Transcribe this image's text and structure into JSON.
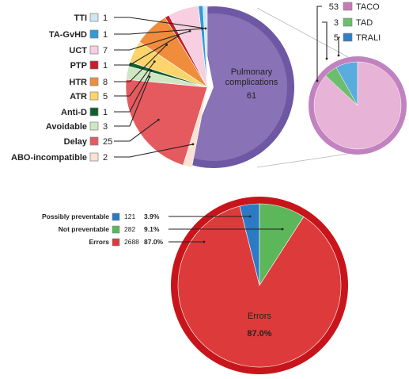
{
  "chart_data": [
    {
      "type": "pie",
      "slices": [
        {
          "label": "TTI",
          "value": 1,
          "color": "#cfe6f4"
        },
        {
          "label": "TA-GvHD",
          "value": 1,
          "color": "#2f9bd6"
        },
        {
          "label": "UCT",
          "value": 7,
          "color": "#f7cfe0"
        },
        {
          "label": "PTP",
          "value": 1,
          "color": "#c51f2b"
        },
        {
          "label": "HTR",
          "value": 8,
          "color": "#f08d3d"
        },
        {
          "label": "ATR",
          "value": 5,
          "color": "#fbd56c"
        },
        {
          "label": "Anti-D",
          "value": 1,
          "color": "#135e2d"
        },
        {
          "label": "Avoidable",
          "value": 3,
          "color": "#cfe6c3"
        },
        {
          "label": "Delay",
          "value": 25,
          "color": "#e55a5e"
        },
        {
          "label": "ABO-incompatible",
          "value": 2,
          "color": "#fbe1d2"
        }
      ],
      "exploded_slice": {
        "label_line1": "Pulmonary",
        "label_line2": "complications",
        "value": 61,
        "color": "#8a72b6",
        "rim_color": "#6e57a3"
      }
    },
    {
      "type": "pie",
      "slices": [
        {
          "label": "TACO",
          "value": 53,
          "color": "#e7b3d6",
          "swatch": "#c77bb5"
        },
        {
          "label": "TAD",
          "value": 3,
          "color": "#6cbd6c"
        },
        {
          "label": "TRALI",
          "value": 5,
          "color": "#5aacdf",
          "swatch": "#2f7fc6"
        }
      ],
      "rim_color": "#c183c0"
    },
    {
      "type": "pie",
      "slices": [
        {
          "label": "Possibly preventable",
          "value": 121,
          "pct": "3.9%",
          "color": "#2c79c5"
        },
        {
          "label": "Not preventable",
          "value": 282,
          "pct": "9.1%",
          "color": "#5cb65a"
        },
        {
          "label": "Errors",
          "value": 2688,
          "pct": "87.0%",
          "color": "#dd3b3b"
        }
      ],
      "center_label": "Errors",
      "center_value": "87.0%",
      "rim_color": "#c8151b"
    }
  ]
}
